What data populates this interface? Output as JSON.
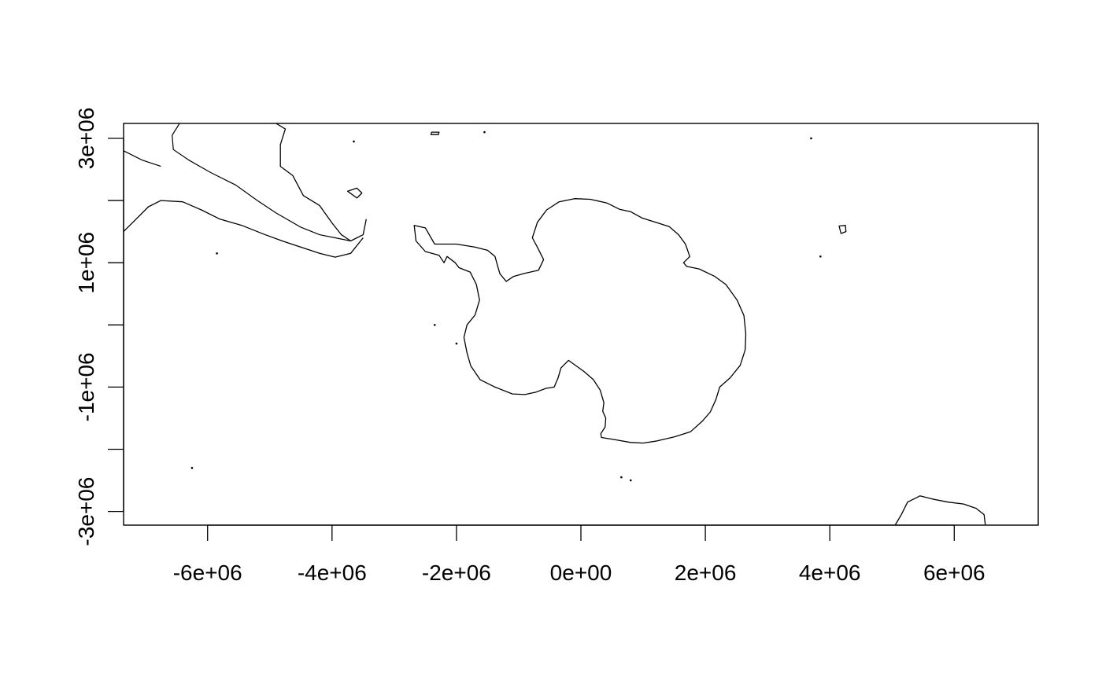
{
  "chart_data": {
    "type": "map",
    "projection_units": "m",
    "xlim": [
      -7350000,
      7350000
    ],
    "ylim": [
      -3220000,
      3240000
    ],
    "x_ticks": [
      {
        "value": -6000000,
        "label": "-6e+06"
      },
      {
        "value": -4000000,
        "label": "-4e+06"
      },
      {
        "value": -2000000,
        "label": "-2e+06"
      },
      {
        "value": 0,
        "label": "0e+00"
      },
      {
        "value": 2000000,
        "label": "2e+06"
      },
      {
        "value": 4000000,
        "label": "4e+06"
      },
      {
        "value": 6000000,
        "label": "6e+06"
      }
    ],
    "y_ticks": [
      {
        "value": -3000000,
        "label": "-3e+06"
      },
      {
        "value": -2000000,
        "label": ""
      },
      {
        "value": -1000000,
        "label": "-1e+06"
      },
      {
        "value": 0,
        "label": ""
      },
      {
        "value": 1000000,
        "label": "1e+06"
      },
      {
        "value": 2000000,
        "label": ""
      },
      {
        "value": 3000000,
        "label": "3e+06"
      }
    ],
    "features": [
      {
        "name": "antarctica-coastline",
        "kind": "polygon",
        "coords": [
          [
            -1700000,
            1250000
          ],
          [
            -1500000,
            1200000
          ],
          [
            -1380000,
            1100000
          ],
          [
            -1340000,
            950000
          ],
          [
            -1300000,
            820000
          ],
          [
            -1200000,
            700000
          ],
          [
            -1080000,
            780000
          ],
          [
            -900000,
            830000
          ],
          [
            -680000,
            880000
          ],
          [
            -600000,
            1050000
          ],
          [
            -700000,
            1250000
          ],
          [
            -780000,
            1400000
          ],
          [
            -700000,
            1650000
          ],
          [
            -550000,
            1850000
          ],
          [
            -350000,
            1980000
          ],
          [
            -100000,
            2030000
          ],
          [
            150000,
            2020000
          ],
          [
            420000,
            1960000
          ],
          [
            620000,
            1860000
          ],
          [
            800000,
            1820000
          ],
          [
            980000,
            1720000
          ],
          [
            1200000,
            1650000
          ],
          [
            1420000,
            1580000
          ],
          [
            1570000,
            1450000
          ],
          [
            1680000,
            1300000
          ],
          [
            1750000,
            1100000
          ],
          [
            1650000,
            1000000
          ],
          [
            1700000,
            940000
          ],
          [
            1900000,
            900000
          ],
          [
            2150000,
            780000
          ],
          [
            2330000,
            650000
          ],
          [
            2510000,
            400000
          ],
          [
            2620000,
            150000
          ],
          [
            2650000,
            -150000
          ],
          [
            2640000,
            -400000
          ],
          [
            2560000,
            -650000
          ],
          [
            2400000,
            -850000
          ],
          [
            2230000,
            -1000000
          ],
          [
            2170000,
            -1200000
          ],
          [
            2080000,
            -1400000
          ],
          [
            1950000,
            -1550000
          ],
          [
            1760000,
            -1720000
          ],
          [
            1500000,
            -1800000
          ],
          [
            1200000,
            -1870000
          ],
          [
            1000000,
            -1900000
          ],
          [
            800000,
            -1890000
          ],
          [
            570000,
            -1850000
          ],
          [
            330000,
            -1810000
          ],
          [
            320000,
            -1750000
          ],
          [
            390000,
            -1640000
          ],
          [
            400000,
            -1500000
          ],
          [
            350000,
            -1390000
          ],
          [
            370000,
            -1250000
          ],
          [
            310000,
            -1050000
          ],
          [
            200000,
            -880000
          ],
          [
            50000,
            -750000
          ],
          [
            -200000,
            -570000
          ],
          [
            -320000,
            -690000
          ],
          [
            -370000,
            -860000
          ],
          [
            -430000,
            -1000000
          ],
          [
            -560000,
            -1020000
          ],
          [
            -720000,
            -1080000
          ],
          [
            -900000,
            -1120000
          ],
          [
            -1100000,
            -1110000
          ],
          [
            -1380000,
            -1000000
          ],
          [
            -1620000,
            -880000
          ],
          [
            -1770000,
            -660000
          ],
          [
            -1830000,
            -450000
          ],
          [
            -1880000,
            -200000
          ],
          [
            -1830000,
            0
          ],
          [
            -1700000,
            160000
          ],
          [
            -1630000,
            400000
          ],
          [
            -1680000,
            650000
          ],
          [
            -1780000,
            850000
          ],
          [
            -1960000,
            920000
          ],
          [
            -2020000,
            1000000
          ],
          [
            -2150000,
            1100000
          ],
          [
            -2200000,
            1000000
          ],
          [
            -2280000,
            1120000
          ],
          [
            -2500000,
            1180000
          ],
          [
            -2650000,
            1350000
          ],
          [
            -2680000,
            1600000
          ],
          [
            -2500000,
            1560000
          ],
          [
            -2350000,
            1300000
          ],
          [
            -2000000,
            1300000
          ],
          [
            -1700000,
            1250000
          ]
        ]
      },
      {
        "name": "south-america-west-coast",
        "kind": "line",
        "coords": [
          [
            -7350000,
            1500000
          ],
          [
            -7150000,
            1700000
          ],
          [
            -6950000,
            1900000
          ],
          [
            -6750000,
            2000000
          ],
          [
            -6400000,
            1980000
          ],
          [
            -6100000,
            1850000
          ],
          [
            -5800000,
            1700000
          ],
          [
            -5450000,
            1600000
          ],
          [
            -5100000,
            1460000
          ],
          [
            -4800000,
            1350000
          ],
          [
            -4500000,
            1250000
          ],
          [
            -4200000,
            1150000
          ],
          [
            -3950000,
            1090000
          ],
          [
            -3700000,
            1150000
          ],
          [
            -3500000,
            1400000
          ]
        ]
      },
      {
        "name": "south-america-east-coast",
        "kind": "line",
        "coords": [
          [
            -4900000,
            3240000
          ],
          [
            -4750000,
            3150000
          ],
          [
            -4830000,
            2900000
          ],
          [
            -4830000,
            2550000
          ],
          [
            -4630000,
            2400000
          ],
          [
            -4460000,
            2080000
          ],
          [
            -4200000,
            1920000
          ],
          [
            -4000000,
            1640000
          ],
          [
            -3850000,
            1450000
          ],
          [
            -3700000,
            1350000
          ],
          [
            -3500000,
            1450000
          ],
          [
            -3450000,
            1700000
          ]
        ]
      },
      {
        "name": "southern-africa-coast",
        "kind": "line",
        "coords": [
          [
            5050000,
            -3220000
          ],
          [
            5150000,
            -3050000
          ],
          [
            5250000,
            -2850000
          ],
          [
            5450000,
            -2750000
          ],
          [
            5650000,
            -2800000
          ],
          [
            5900000,
            -2850000
          ],
          [
            6150000,
            -2880000
          ],
          [
            6350000,
            -2950000
          ],
          [
            6480000,
            -3050000
          ],
          [
            6500000,
            -3220000
          ]
        ]
      },
      {
        "name": "falkland-islands",
        "kind": "polygon",
        "coords": [
          [
            -3750000,
            2150000
          ],
          [
            -3600000,
            2200000
          ],
          [
            -3520000,
            2120000
          ],
          [
            -3600000,
            2040000
          ],
          [
            -3750000,
            2150000
          ]
        ]
      },
      {
        "name": "kerguelen-islands",
        "kind": "polygon",
        "coords": [
          [
            4150000,
            1590000
          ],
          [
            4250000,
            1600000
          ],
          [
            4260000,
            1500000
          ],
          [
            4180000,
            1470000
          ],
          [
            4150000,
            1590000
          ]
        ]
      },
      {
        "name": "south-georgia",
        "kind": "polygon",
        "coords": [
          [
            -2400000,
            3100000
          ],
          [
            -2280000,
            3100000
          ],
          [
            -2290000,
            3060000
          ],
          [
            -2410000,
            3060000
          ],
          [
            -2400000,
            3100000
          ]
        ]
      }
    ],
    "borders": [
      {
        "name": "chile-argentina-border",
        "coords": [
          [
            -6450000,
            3240000
          ],
          [
            -6570000,
            3050000
          ],
          [
            -6550000,
            2820000
          ],
          [
            -6300000,
            2650000
          ],
          [
            -5950000,
            2450000
          ],
          [
            -5550000,
            2250000
          ],
          [
            -5200000,
            2000000
          ],
          [
            -4900000,
            1800000
          ],
          [
            -4500000,
            1570000
          ],
          [
            -4200000,
            1450000
          ],
          [
            -3950000,
            1400000
          ],
          [
            -3700000,
            1350000
          ]
        ]
      },
      {
        "name": "northern-border",
        "coords": [
          [
            -7350000,
            2800000
          ],
          [
            -7050000,
            2650000
          ],
          [
            -6750000,
            2550000
          ]
        ]
      }
    ],
    "islands_small": [
      [
        -5850000,
        1150000
      ],
      [
        -3650000,
        2950000
      ],
      [
        -1550000,
        3100000
      ],
      [
        3700000,
        3000000
      ],
      [
        3850000,
        1100000
      ],
      [
        -6250000,
        -2300000
      ],
      [
        650000,
        -2450000
      ],
      [
        800000,
        -2500000
      ],
      [
        -2350000,
        0
      ],
      [
        -2000000,
        -300000
      ]
    ],
    "grid": false
  }
}
